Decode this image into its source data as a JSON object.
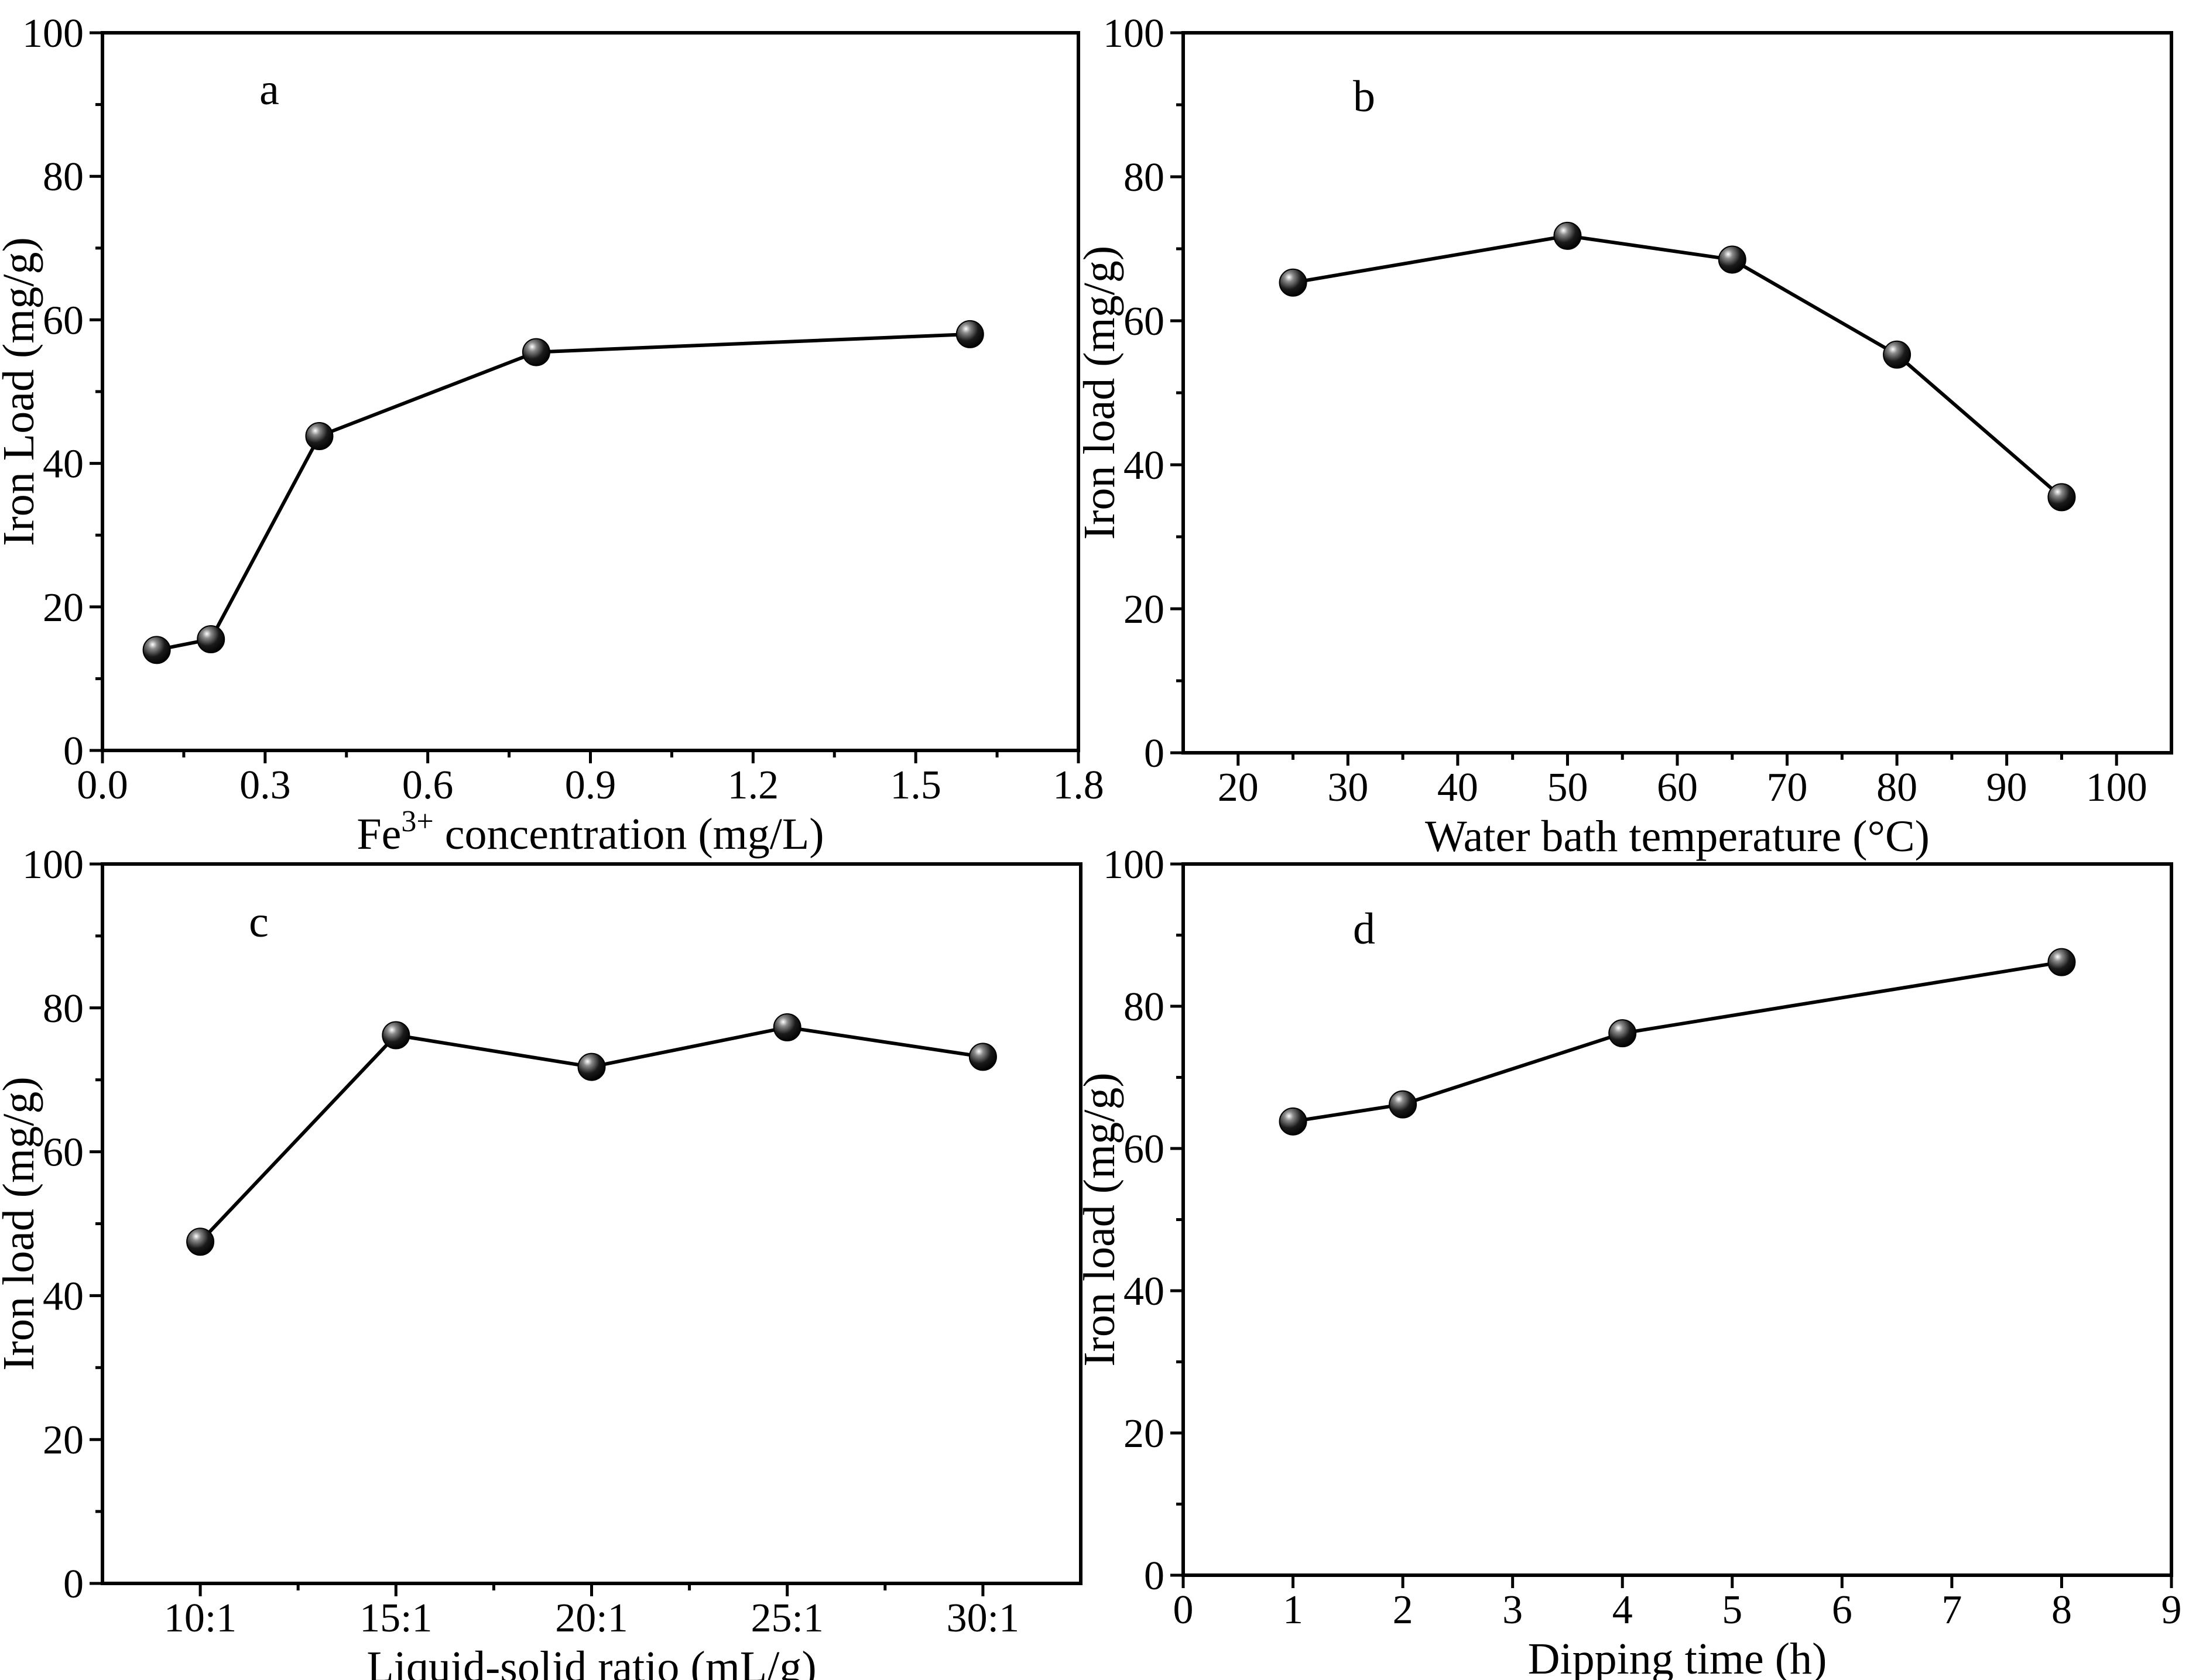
{
  "chart_data": [
    {
      "type": "line",
      "panel_label": "a",
      "xlabel_main": "Fe",
      "xlabel_sup": "3+",
      "xlabel_rest": " concentration (mg/L)",
      "ylabel": "Iron Load (mg/g)",
      "xlim": [
        0.0,
        1.8
      ],
      "ylim": [
        0,
        100
      ],
      "x_ticks": [
        0.0,
        0.3,
        0.6,
        0.9,
        1.2,
        1.5,
        1.8
      ],
      "x_tick_labels": [
        "0.0",
        "0.3",
        "0.6",
        "0.9",
        "1.2",
        "1.5",
        "1.8"
      ],
      "y_ticks": [
        0,
        20,
        40,
        60,
        80,
        100
      ],
      "y_tick_labels": [
        "0",
        "20",
        "40",
        "60",
        "80",
        "100"
      ],
      "series": [
        {
          "name": "Iron load",
          "x": [
            0.1,
            0.2,
            0.4,
            0.8,
            1.6
          ],
          "y": [
            14,
            15.5,
            43.8,
            55.5,
            58
          ]
        }
      ]
    },
    {
      "type": "line",
      "panel_label": "b",
      "xlabel": "Water bath temperature (°C)",
      "ylabel": "Iron load (mg/g)",
      "xlim": [
        15,
        105
      ],
      "ylim": [
        0,
        100
      ],
      "x_ticks": [
        20,
        30,
        40,
        50,
        60,
        70,
        80,
        90,
        100
      ],
      "x_tick_labels": [
        "20",
        "30",
        "40",
        "50",
        "60",
        "70",
        "80",
        "90",
        "100"
      ],
      "y_ticks": [
        0,
        20,
        40,
        60,
        80,
        100
      ],
      "y_tick_labels": [
        "0",
        "20",
        "40",
        "60",
        "80",
        "100"
      ],
      "series": [
        {
          "name": "Iron load",
          "x": [
            25,
            50,
            65,
            80,
            95
          ],
          "y": [
            65.3,
            71.8,
            68.5,
            55.3,
            35.5
          ]
        }
      ]
    },
    {
      "type": "line",
      "panel_label": "c",
      "xlabel": "Liquid-solid ratio (mL/g)",
      "ylabel": "Iron load (mg/g)",
      "xlim": [
        0.5,
        5.5
      ],
      "ylim": [
        0,
        100
      ],
      "x_ticks": [
        1,
        2,
        3,
        4,
        5
      ],
      "x_tick_labels": [
        "10:1",
        "15:1",
        "20:1",
        "25:1",
        "30:1"
      ],
      "y_ticks": [
        0,
        20,
        40,
        60,
        80,
        100
      ],
      "y_tick_labels": [
        "0",
        "20",
        "40",
        "60",
        "80",
        "100"
      ],
      "series": [
        {
          "name": "Iron load",
          "x": [
            1,
            2,
            3,
            4,
            5
          ],
          "y": [
            47.5,
            76.2,
            71.8,
            77.3,
            73.2
          ]
        }
      ]
    },
    {
      "type": "line",
      "panel_label": "d",
      "xlabel": "Dipping time (h)",
      "ylabel": "Iron load (mg/g)",
      "xlim": [
        0,
        9
      ],
      "ylim": [
        0,
        100
      ],
      "x_ticks": [
        0,
        1,
        2,
        3,
        4,
        5,
        6,
        7,
        8,
        9
      ],
      "x_tick_labels": [
        "0",
        "1",
        "2",
        "3",
        "4",
        "5",
        "6",
        "7",
        "8",
        "9"
      ],
      "y_ticks": [
        0,
        20,
        40,
        60,
        80,
        100
      ],
      "y_tick_labels": [
        "0",
        "20",
        "40",
        "60",
        "80",
        "100"
      ],
      "series": [
        {
          "name": "Iron load",
          "x": [
            1,
            2,
            4,
            8
          ],
          "y": [
            63.8,
            66.2,
            76.2,
            86.2
          ]
        }
      ]
    }
  ]
}
